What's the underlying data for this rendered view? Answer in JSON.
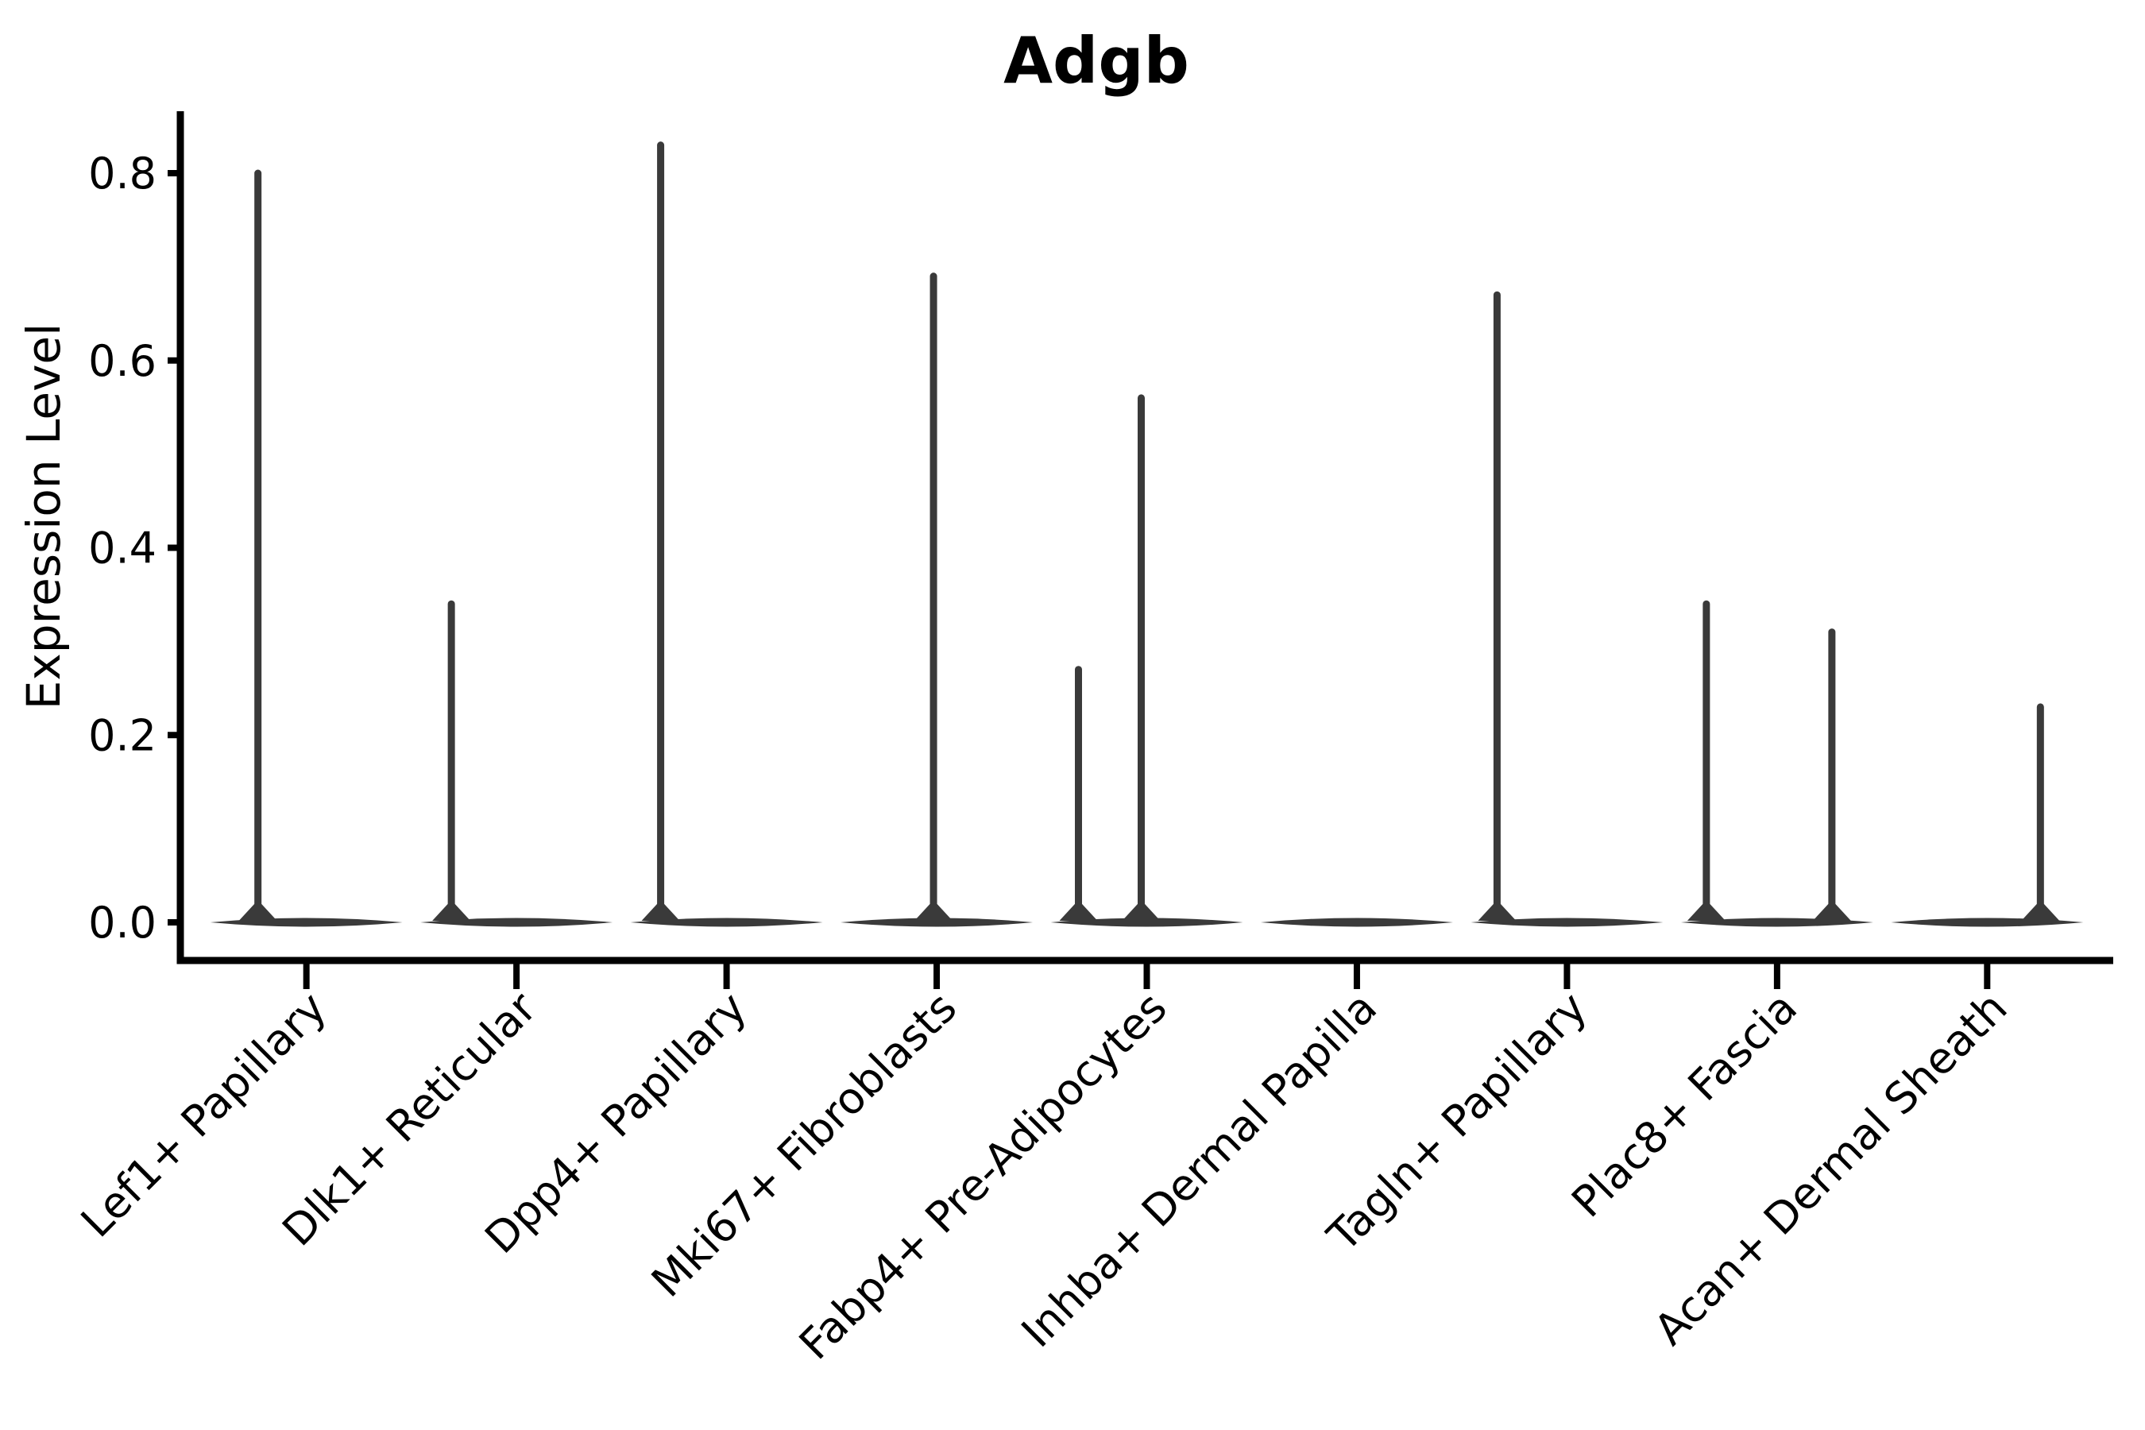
{
  "chart": {
    "title": "Adgb",
    "ylabel": "Expression Level"
  },
  "chart_data": {
    "type": "violin",
    "title": "Adgb",
    "xlabel": "",
    "ylabel": "Expression Level",
    "ylim": [
      -0.04,
      0.88
    ],
    "yticks": [
      0.0,
      0.2,
      0.4,
      0.6,
      0.8
    ],
    "ytick_labels": [
      "0.0",
      "0.2",
      "0.4",
      "0.6",
      "0.8"
    ],
    "grid": false,
    "legend": "none",
    "categories": [
      "Lef1+ Papillary",
      "Dlk1+ Reticular",
      "Dpp4+ Papillary",
      "Mki67+ Fibroblasts",
      "Fabp4+ Pre-Adipocytes",
      "Inhba+ Dermal Papilla",
      "Tagln+ Papillary",
      "Plac8+ Fascia",
      "Acan+ Dermal Sheath"
    ],
    "series": [
      {
        "name": "Lef1+ Papillary",
        "zero_density_bulk": true,
        "peaks": [
          {
            "value": 0.8,
            "dx": -61
          }
        ]
      },
      {
        "name": "Dlk1+ Reticular",
        "zero_density_bulk": true,
        "peaks": [
          {
            "value": 0.34,
            "dx": -82
          }
        ]
      },
      {
        "name": "Dpp4+ Papillary",
        "zero_density_bulk": true,
        "peaks": [
          {
            "value": 0.83,
            "dx": -83
          }
        ]
      },
      {
        "name": "Mki67+ Fibroblasts",
        "zero_density_bulk": true,
        "peaks": [
          {
            "value": 0.69,
            "dx": -4
          }
        ]
      },
      {
        "name": "Fabp4+ Pre-Adipocytes",
        "zero_density_bulk": true,
        "peaks": [
          {
            "value": 0.27,
            "dx": -86
          },
          {
            "value": 0.56,
            "dx": -7
          }
        ]
      },
      {
        "name": "Inhba+ Dermal Papilla",
        "zero_density_bulk": true,
        "peaks": []
      },
      {
        "name": "Tagln+ Papillary",
        "zero_density_bulk": true,
        "peaks": [
          {
            "value": 0.67,
            "dx": -88
          }
        ]
      },
      {
        "name": "Plac8+ Fascia",
        "zero_density_bulk": true,
        "peaks": [
          {
            "value": 0.34,
            "dx": -89
          },
          {
            "value": 0.31,
            "dx": 69
          }
        ]
      },
      {
        "name": "Acan+ Dermal Sheath",
        "zero_density_bulk": true,
        "peaks": [
          {
            "value": 0.23,
            "dx": 67
          }
        ]
      }
    ],
    "colors": {
      "violin_stroke": "#3a3a3a",
      "axis": "#000000",
      "text": "#000000",
      "background": "#ffffff"
    }
  }
}
